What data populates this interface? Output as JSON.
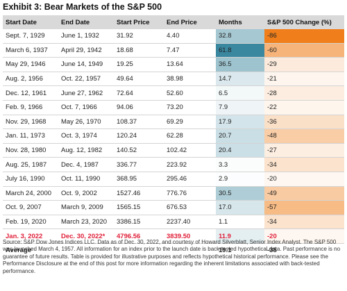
{
  "title": "Exhibit 3: Bear Markets of the S&P 500",
  "columns": [
    "Start Date",
    "End Date",
    "Start Price",
    "End Price",
    "Months",
    "S&P 500 Change (%)"
  ],
  "rows": [
    {
      "start": "Sept. 7, 1929",
      "end": "June 1, 1932",
      "start_price": "31.92",
      "end_price": "4.40",
      "months": "32.8",
      "change": "-86",
      "months_color": "#a6c8d2",
      "change_color": "#f07f1b"
    },
    {
      "start": "March 6, 1937",
      "end": "April 29, 1942",
      "start_price": "18.68",
      "end_price": "7.47",
      "months": "61.8",
      "change": "-60",
      "months_color": "#3a87a0",
      "change_color": "#f6b47a"
    },
    {
      "start": "May 29, 1946",
      "end": "June 14, 1949",
      "start_price": "19.25",
      "end_price": "13.64",
      "months": "36.5",
      "change": "-29",
      "months_color": "#9cc3ce",
      "change_color": "#fcebdc"
    },
    {
      "start": "Aug. 2, 1956",
      "end": "Oct. 22, 1957",
      "start_price": "49.64",
      "end_price": "38.98",
      "months": "14.7",
      "change": "-21",
      "months_color": "#dbe9ee",
      "change_color": "#fef6ee"
    },
    {
      "start": "Dec. 12, 1961",
      "end": "June 27, 1962",
      "start_price": "72.64",
      "end_price": "52.60",
      "months": "6.5",
      "change": "-28",
      "months_color": "#f3f8f9",
      "change_color": "#fcede0"
    },
    {
      "start": "Feb. 9, 1966",
      "end": "Oct. 7, 1966",
      "start_price": "94.06",
      "end_price": "73.20",
      "months": "7.9",
      "change": "-22",
      "months_color": "#eff5f7",
      "change_color": "#fef5ec"
    },
    {
      "start": "Nov. 29, 1968",
      "end": "May 26, 1970",
      "start_price": "108.37",
      "end_price": "69.29",
      "months": "17.9",
      "change": "-36",
      "months_color": "#d3e4ea",
      "change_color": "#fbe0c8"
    },
    {
      "start": "Jan. 11, 1973",
      "end": "Oct. 3, 1974",
      "start_price": "120.24",
      "end_price": "62.28",
      "months": "20.7",
      "change": "-48",
      "months_color": "#cadfe5",
      "change_color": "#f9cda5"
    },
    {
      "start": "Nov. 28, 1980",
      "end": "Aug. 12, 1982",
      "start_price": "140.52",
      "end_price": "102.42",
      "months": "20.4",
      "change": "-27",
      "months_color": "#cbdfe6",
      "change_color": "#fdeee2"
    },
    {
      "start": "Aug. 25, 1987",
      "end": "Dec. 4, 1987",
      "start_price": "336.77",
      "end_price": "223.92",
      "months": "3.3",
      "change": "-34",
      "months_color": "#fbfdfd",
      "change_color": "#fbe3cd"
    },
    {
      "start": "July 16, 1990",
      "end": "Oct. 11, 1990",
      "start_price": "368.95",
      "end_price": "295.46",
      "months": "2.9",
      "change": "-20",
      "months_color": "#fcfdfe",
      "change_color": "#fef7f1"
    },
    {
      "start": "March 24, 2000",
      "end": "Oct. 9, 2002",
      "start_price": "1527.46",
      "end_price": "776.76",
      "months": "30.5",
      "change": "-49",
      "months_color": "#aecdd6",
      "change_color": "#f9cba2"
    },
    {
      "start": "Oct. 9, 2007",
      "end": "March 9, 2009",
      "start_price": "1565.15",
      "end_price": "676.53",
      "months": "17.0",
      "change": "-57",
      "months_color": "#d6e6eb",
      "change_color": "#f7bb86"
    },
    {
      "start": "Feb. 19, 2020",
      "end": "March 23, 2020",
      "start_price": "3386.15",
      "end_price": "2237.40",
      "months": "1.1",
      "change": "-34",
      "months_color": "#ffffff",
      "change_color": "#fbe3cd"
    },
    {
      "start": "Jan. 3, 2022",
      "end": "Dec. 30, 2022*",
      "start_price": "4796.56",
      "end_price": "3839.50",
      "months": "11.9",
      "change": "-20",
      "months_color": "#e4eff2",
      "change_color": "#fef7f1",
      "current": true
    }
  ],
  "average": {
    "label": "Average",
    "months": "19.1",
    "change": "-38"
  },
  "note": "Source: S&P Dow Jones Indices LLC. Data as of Dec. 30, 2022, and courtesy of Howard Silverblatt, Senior Index Analyst. The S&P 500 was launched March 4, 1957. All information for an index prior to the launch date is back-tested hypothetical data. Past performance is no guarantee of future results. Table is provided for illustrative purposes and reflects hypothetical historical performance. Please see the Performance Disclosure at the end of this post for more information regarding the inherent limitations associated with back-tested performance."
}
